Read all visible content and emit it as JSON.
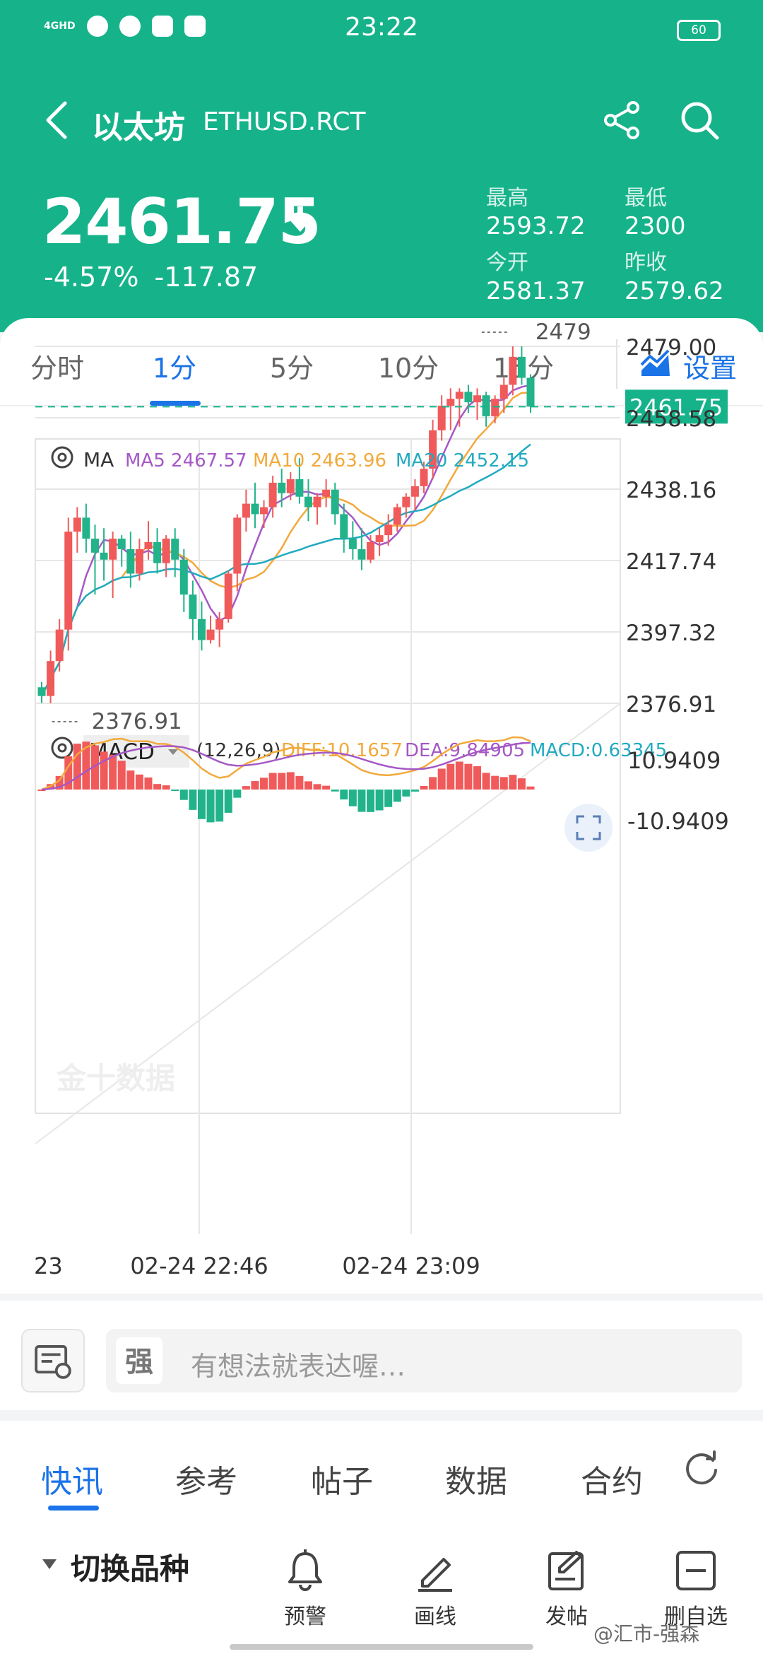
{
  "status_bar": {
    "network": "4GHD",
    "time": "23:22",
    "battery": "60"
  },
  "header": {
    "title": "以太坊",
    "symbol": "ETHUSD.RCT",
    "price": "2461.75",
    "change_pct": "-4.57%",
    "change_abs": "-117.87",
    "stats": [
      {
        "label": "最高",
        "value": "2593.72"
      },
      {
        "label": "最低",
        "value": "2300"
      },
      {
        "label": "今开",
        "value": "2581.37"
      },
      {
        "label": "昨收",
        "value": "2579.62"
      }
    ]
  },
  "period_tabs": [
    "分时",
    "1分",
    "5分",
    "10分",
    "15分"
  ],
  "active_period": "1分",
  "settings_label": "设置",
  "colors": {
    "accent": "#16b38b",
    "up": "#f05a5a",
    "down": "#22b38b",
    "blue": "#1b73e8",
    "ma5": "#a558c6",
    "ma10": "#f2a93b",
    "ma20": "#22aac0"
  },
  "chart_data": [
    {
      "type": "candlestick",
      "indicator_label": "MA",
      "ma_legend": [
        {
          "name": "MA5",
          "value": "2467.57"
        },
        {
          "name": "MA10",
          "value": "2463.96"
        },
        {
          "name": "MA20",
          "value": "2452.15"
        }
      ],
      "y_ticks": [
        "2479.00",
        "2458.58",
        "2438.16",
        "2417.74",
        "2397.32",
        "2376.91"
      ],
      "ylim": [
        2376.91,
        2479.0
      ],
      "x_ticks": [
        "23",
        "02-24 22:46",
        "02-24 23:09"
      ],
      "high_label": "2479",
      "low_label": "2376.91",
      "last_price": "2461.75",
      "watermark": "金十数据",
      "candles": [
        [
          2381.5,
          2383.0,
          2377.0,
          2379.0
        ],
        [
          2379.0,
          2392.0,
          2376.9,
          2389.0
        ],
        [
          2389.0,
          2401.0,
          2386.0,
          2398.0
        ],
        [
          2398.0,
          2430.0,
          2392.0,
          2426.0
        ],
        [
          2426.0,
          2433.0,
          2420.0,
          2430.0
        ],
        [
          2430.0,
          2434.0,
          2420.0,
          2424.0
        ],
        [
          2424.0,
          2428.0,
          2408.0,
          2420.0
        ],
        [
          2420.0,
          2427.0,
          2412.0,
          2418.0
        ],
        [
          2418.0,
          2426.0,
          2407.0,
          2424.0
        ],
        [
          2424.0,
          2425.0,
          2416.0,
          2421.0
        ],
        [
          2421.0,
          2426.0,
          2410.0,
          2414.0
        ],
        [
          2414.0,
          2424.0,
          2412.0,
          2421.0
        ],
        [
          2421.0,
          2429.0,
          2418.0,
          2423.0
        ],
        [
          2423.0,
          2427.0,
          2414.0,
          2417.0
        ],
        [
          2417.0,
          2425.0,
          2413.0,
          2424.0
        ],
        [
          2424.0,
          2427.0,
          2413.0,
          2418.0
        ],
        [
          2418.0,
          2421.0,
          2403.0,
          2408.0
        ],
        [
          2408.0,
          2412.0,
          2395.0,
          2401.0
        ],
        [
          2401.0,
          2406.0,
          2392.0,
          2395.0
        ],
        [
          2395.0,
          2402.0,
          2394.0,
          2398.0
        ],
        [
          2398.0,
          2403.0,
          2393.0,
          2401.0
        ],
        [
          2401.0,
          2415.0,
          2400.0,
          2414.0
        ],
        [
          2414.0,
          2431.0,
          2409.0,
          2430.0
        ],
        [
          2430.0,
          2438.0,
          2426.0,
          2434.0
        ],
        [
          2434.0,
          2440.0,
          2427.0,
          2431.0
        ],
        [
          2431.0,
          2435.0,
          2427.0,
          2433.0
        ],
        [
          2433.0,
          2442.0,
          2430.0,
          2440.0
        ],
        [
          2440.0,
          2444.0,
          2433.0,
          2437.0
        ],
        [
          2437.0,
          2443.0,
          2435.0,
          2441.0
        ],
        [
          2441.0,
          2447.0,
          2434.0,
          2436.0
        ],
        [
          2436.0,
          2441.0,
          2429.0,
          2433.0
        ],
        [
          2433.0,
          2437.0,
          2428.0,
          2436.0
        ],
        [
          2436.0,
          2441.0,
          2433.0,
          2438.0
        ],
        [
          2438.0,
          2440.0,
          2428.0,
          2431.0
        ],
        [
          2431.0,
          2434.0,
          2420.0,
          2424.0
        ],
        [
          2424.0,
          2429.0,
          2418.0,
          2421.0
        ],
        [
          2421.0,
          2427.0,
          2415.0,
          2418.0
        ],
        [
          2418.0,
          2425.0,
          2417.0,
          2423.0
        ],
        [
          2423.0,
          2427.0,
          2419.0,
          2425.0
        ],
        [
          2425.0,
          2431.0,
          2422.0,
          2428.0
        ],
        [
          2428.0,
          2434.0,
          2426.0,
          2433.0
        ],
        [
          2433.0,
          2437.0,
          2430.0,
          2436.0
        ],
        [
          2436.0,
          2441.0,
          2432.0,
          2439.0
        ],
        [
          2439.0,
          2446.0,
          2437.0,
          2444.0
        ],
        [
          2444.0,
          2458.0,
          2441.0,
          2455.0
        ],
        [
          2455.0,
          2465.0,
          2452.0,
          2462.0
        ],
        [
          2462.0,
          2467.0,
          2455.0,
          2464.0
        ],
        [
          2464.0,
          2467.0,
          2456.0,
          2466.0
        ],
        [
          2466.0,
          2468.0,
          2460.0,
          2463.0
        ],
        [
          2463.0,
          2467.0,
          2458.0,
          2465.0
        ],
        [
          2465.0,
          2466.0,
          2456.0,
          2459.0
        ],
        [
          2459.0,
          2465.0,
          2457.0,
          2464.0
        ],
        [
          2464.0,
          2470.0,
          2460.0,
          2468.0
        ],
        [
          2468.0,
          2479.0,
          2465.0,
          2476.0
        ],
        [
          2476.0,
          2479.0,
          2468.0,
          2470.0
        ],
        [
          2470.0,
          2471.0,
          2460.0,
          2461.75
        ]
      ]
    },
    {
      "type": "macd",
      "label": "MACD",
      "params": "(12,26,9)",
      "legend": [
        {
          "name": "DIFF",
          "value": "10.1657"
        },
        {
          "name": "DEA",
          "value": "9.84905"
        },
        {
          "name": "MACD",
          "value": "0.63345"
        }
      ],
      "y_ticks": [
        "10.9409",
        "-10.9409"
      ],
      "ylim": [
        -10.9409,
        10.9409
      ]
    }
  ],
  "comment": {
    "placeholder": "有想法就表达喔…"
  },
  "bottom_tabs": [
    "快讯",
    "参考",
    "帖子",
    "数据",
    "合约"
  ],
  "switch_product": "切换品种",
  "tools": [
    {
      "id": "alert",
      "label": "预警"
    },
    {
      "id": "draw",
      "label": "画线"
    },
    {
      "id": "post",
      "label": "发帖"
    },
    {
      "id": "watchlist",
      "label": "删自选"
    }
  ],
  "watermark_text": "@汇市-强森"
}
